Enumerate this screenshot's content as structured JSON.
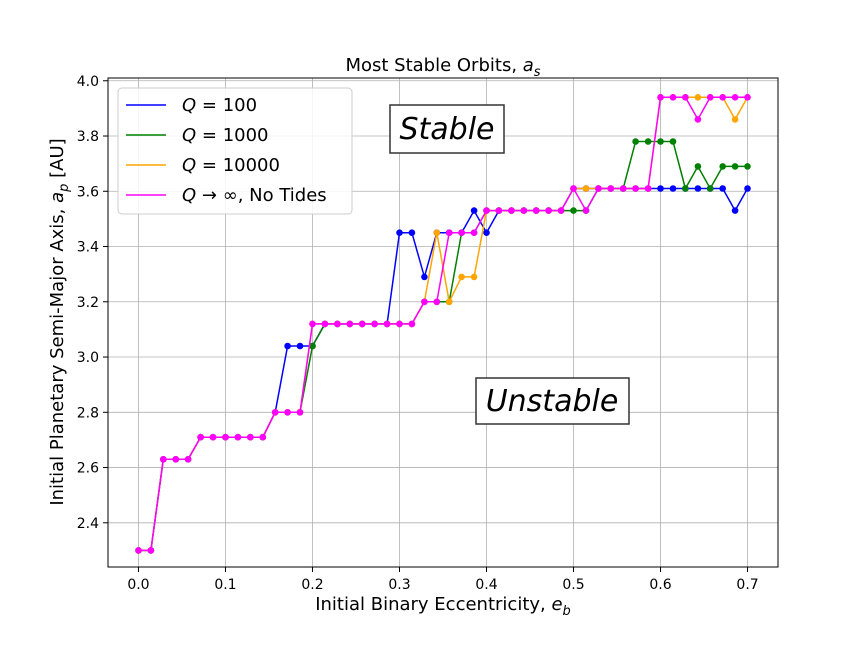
{
  "chart_data": {
    "type": "line",
    "title": "Most Stable Orbits, a_s",
    "xlabel": "Initial Binary Eccentricity, e_b",
    "ylabel": "Initial Planetary Semi-Major Axis, a_p [AU]",
    "xlim": [
      -0.035,
      0.735
    ],
    "ylim": [
      2.24,
      4.01
    ],
    "xticks": [
      0.0,
      0.1,
      0.2,
      0.3,
      0.4,
      0.5,
      0.6,
      0.7
    ],
    "xtick_labels": [
      "0.0",
      "0.1",
      "0.2",
      "0.3",
      "0.4",
      "0.5",
      "0.6",
      "0.7"
    ],
    "yticks": [
      2.4,
      2.6,
      2.8,
      3.0,
      3.2,
      3.4,
      3.6,
      3.8,
      4.0
    ],
    "ytick_labels": [
      "2.4",
      "2.6",
      "2.8",
      "3.0",
      "3.2",
      "3.4",
      "3.6",
      "3.8",
      "4.0"
    ],
    "grid": true,
    "legend_position": "top-left",
    "annotations": [
      "Stable",
      "Unstable"
    ],
    "x": [
      0.0,
      0.0143,
      0.0286,
      0.0429,
      0.0571,
      0.0714,
      0.0857,
      0.1,
      0.1143,
      0.1286,
      0.1429,
      0.1571,
      0.1714,
      0.1857,
      0.2,
      0.2143,
      0.2286,
      0.2429,
      0.2571,
      0.2714,
      0.2857,
      0.3,
      0.3143,
      0.3286,
      0.3429,
      0.3571,
      0.3714,
      0.3857,
      0.4,
      0.4143,
      0.4286,
      0.4429,
      0.4571,
      0.4714,
      0.4857,
      0.5,
      0.5143,
      0.5286,
      0.5429,
      0.5571,
      0.5714,
      0.5857,
      0.6,
      0.6143,
      0.6286,
      0.6429,
      0.6571,
      0.6714,
      0.6857,
      0.7
    ],
    "series": [
      {
        "name": "Q = 100",
        "color": "#0000ff",
        "values": [
          2.3,
          2.3,
          2.63,
          2.63,
          2.63,
          2.71,
          2.71,
          2.71,
          2.71,
          2.71,
          2.71,
          2.8,
          3.04,
          3.04,
          3.04,
          3.12,
          3.12,
          3.12,
          3.12,
          3.12,
          3.12,
          3.45,
          3.45,
          3.29,
          3.45,
          3.45,
          3.45,
          3.53,
          3.45,
          3.53,
          3.53,
          3.53,
          3.53,
          3.53,
          3.53,
          3.61,
          3.61,
          3.61,
          3.61,
          3.61,
          3.61,
          3.61,
          3.61,
          3.61,
          3.61,
          3.61,
          3.61,
          3.61,
          3.53,
          3.61
        ]
      },
      {
        "name": "Q = 1000",
        "color": "#008000",
        "values": [
          2.3,
          2.3,
          2.63,
          2.63,
          2.63,
          2.71,
          2.71,
          2.71,
          2.71,
          2.71,
          2.71,
          2.8,
          2.8,
          2.8,
          3.04,
          3.12,
          3.12,
          3.12,
          3.12,
          3.12,
          3.12,
          3.12,
          3.12,
          3.2,
          3.2,
          3.2,
          3.45,
          3.45,
          3.53,
          3.53,
          3.53,
          3.53,
          3.53,
          3.53,
          3.53,
          3.53,
          3.53,
          3.61,
          3.61,
          3.61,
          3.78,
          3.78,
          3.78,
          3.78,
          3.61,
          3.69,
          3.61,
          3.69,
          3.69,
          3.69
        ]
      },
      {
        "name": "Q = 10000",
        "color": "#ffa500",
        "values": [
          2.3,
          2.3,
          2.63,
          2.63,
          2.63,
          2.71,
          2.71,
          2.71,
          2.71,
          2.71,
          2.71,
          2.8,
          2.8,
          2.8,
          3.12,
          3.12,
          3.12,
          3.12,
          3.12,
          3.12,
          3.12,
          3.12,
          3.12,
          3.2,
          3.45,
          3.2,
          3.29,
          3.29,
          3.53,
          3.53,
          3.53,
          3.53,
          3.53,
          3.53,
          3.53,
          3.61,
          3.61,
          3.61,
          3.61,
          3.61,
          3.61,
          3.61,
          3.94,
          3.94,
          3.94,
          3.94,
          3.94,
          3.94,
          3.86,
          3.94
        ]
      },
      {
        "name": "Q → ∞, No Tides",
        "color": "#ff00ff",
        "values": [
          2.3,
          2.3,
          2.63,
          2.63,
          2.63,
          2.71,
          2.71,
          2.71,
          2.71,
          2.71,
          2.71,
          2.8,
          2.8,
          2.8,
          3.12,
          3.12,
          3.12,
          3.12,
          3.12,
          3.12,
          3.12,
          3.12,
          3.12,
          3.2,
          3.2,
          3.45,
          3.45,
          3.45,
          3.53,
          3.53,
          3.53,
          3.53,
          3.53,
          3.53,
          3.53,
          3.61,
          3.53,
          3.61,
          3.61,
          3.61,
          3.61,
          3.61,
          3.94,
          3.94,
          3.94,
          3.86,
          3.94,
          3.94,
          3.94,
          3.94
        ]
      }
    ]
  }
}
